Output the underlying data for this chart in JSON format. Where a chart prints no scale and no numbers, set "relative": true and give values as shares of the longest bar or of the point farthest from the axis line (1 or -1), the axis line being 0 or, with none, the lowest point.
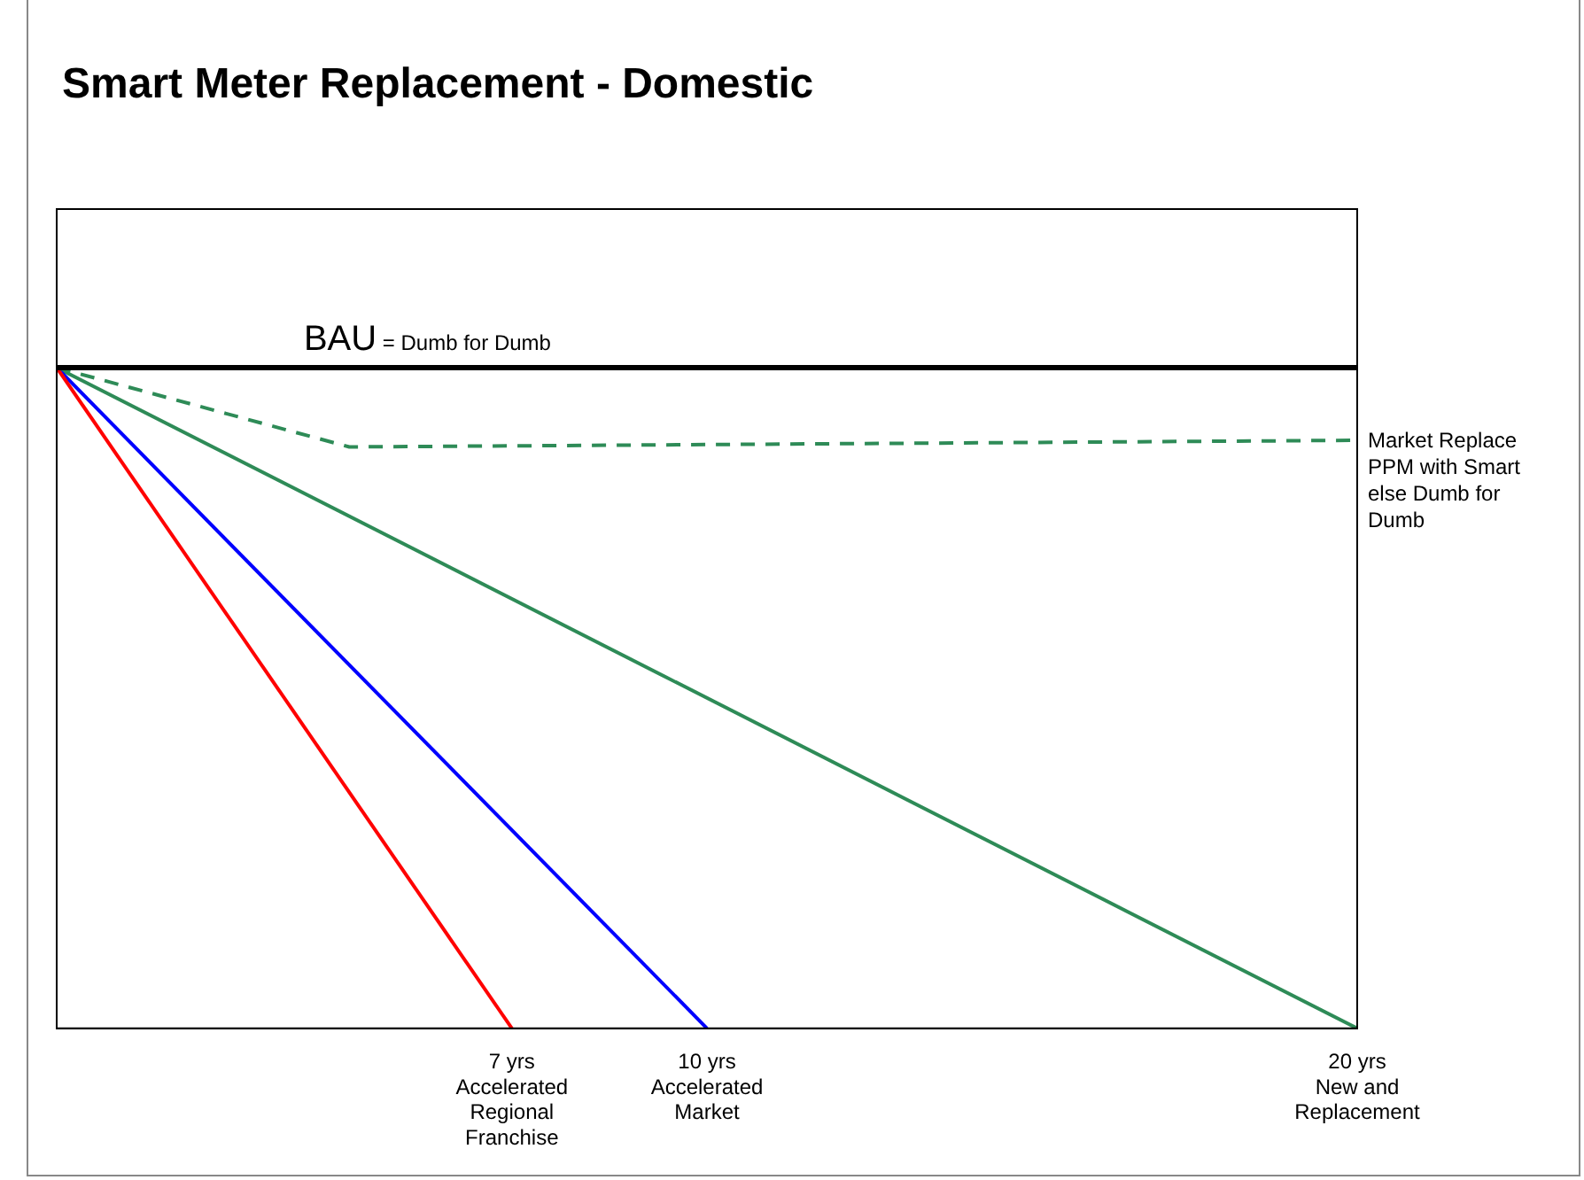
{
  "chart_data": {
    "type": "line",
    "title": "Smart Meter Replacement - Domestic",
    "relative": true,
    "xlim": [
      0,
      20
    ],
    "xticks": [
      {
        "value": 7,
        "label": "7 yrs Accelerated Regional Franchise"
      },
      {
        "value": 10,
        "label": "10 yrs Accelerated Market"
      },
      {
        "value": 20,
        "label": "20 yrs New and Replacement"
      }
    ],
    "series": [
      {
        "name": "BAU = Dumb for Dumb",
        "color": "#000000",
        "x": [
          0,
          20
        ],
        "values": [
          1,
          1
        ]
      },
      {
        "name": "Market Replace PPM with Smart else Dumb for Dumb",
        "color": "#2e8b57",
        "line_style": "dashed",
        "x": [
          0,
          4.5,
          20
        ],
        "values": [
          1,
          0.88,
          0.89
        ]
      },
      {
        "color": "#ff0000",
        "x": [
          0,
          7
        ],
        "values": [
          1,
          0
        ]
      },
      {
        "color": "#0000ff",
        "x": [
          0,
          10
        ],
        "values": [
          1,
          0
        ]
      },
      {
        "color": "#2e8b57",
        "x": [
          0,
          20
        ],
        "values": [
          1,
          0
        ]
      }
    ],
    "grid": false,
    "legend": false,
    "marker": "none",
    "line_style": "solid"
  }
}
